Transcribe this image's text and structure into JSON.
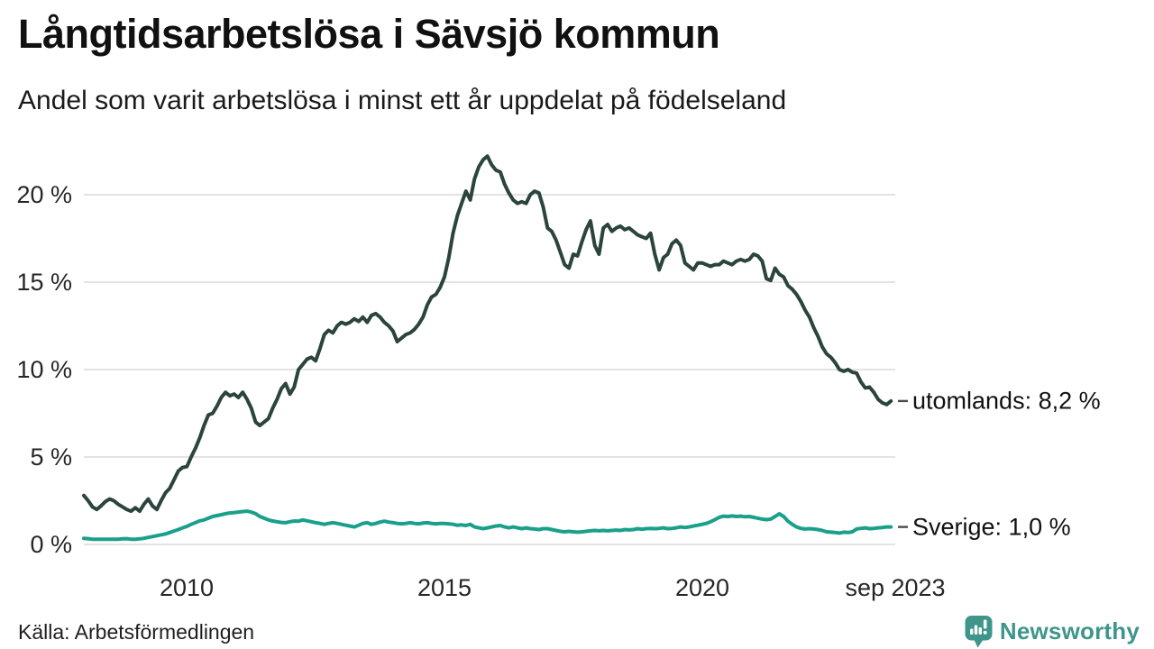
{
  "chart_data": {
    "type": "line",
    "title": "Långtidsarbetslösa i Sävsjö kommun",
    "subtitle": "Andel som varit arbetslösa i minst ett år uppdelat på födelseland",
    "source": "Källa: Arbetsförmedlingen",
    "grid": "horizontal-only",
    "legend_position": "right-end-of-line",
    "x_axis": {
      "range": [
        2008.0,
        2023.75
      ],
      "ticks": [
        {
          "t": 2010,
          "label": "2010"
        },
        {
          "t": 2015,
          "label": "2015"
        },
        {
          "t": 2020,
          "label": "2020"
        },
        {
          "t": 2023.75,
          "label": "sep 2023"
        }
      ]
    },
    "y_axis": {
      "unit": "%",
      "range": [
        0,
        22.5
      ],
      "ticks": [
        {
          "v": 0,
          "label": "0 %"
        },
        {
          "v": 5,
          "label": "5 %"
        },
        {
          "v": 10,
          "label": "10 %"
        },
        {
          "v": 15,
          "label": "15 %"
        },
        {
          "v": 20,
          "label": "20 %"
        }
      ]
    },
    "series": [
      {
        "name": "utomlands",
        "label": "utomlands: 8,2 %",
        "end_value": 8.2,
        "color": "#2b443d",
        "start": 2008.0,
        "per_year": 12,
        "values": [
          2.8,
          2.5,
          2.15,
          2.0,
          2.2,
          2.45,
          2.6,
          2.5,
          2.3,
          2.15,
          2.0,
          1.9,
          2.1,
          1.9,
          2.3,
          2.6,
          2.2,
          2.0,
          2.5,
          2.95,
          3.2,
          3.7,
          4.2,
          4.4,
          4.45,
          5.0,
          5.5,
          6.1,
          6.8,
          7.4,
          7.5,
          7.9,
          8.4,
          8.7,
          8.5,
          8.6,
          8.4,
          8.7,
          8.3,
          7.8,
          7.0,
          6.8,
          7.0,
          7.2,
          7.8,
          8.3,
          8.9,
          9.2,
          8.6,
          9.0,
          10.0,
          10.3,
          10.6,
          10.7,
          10.5,
          11.2,
          12.0,
          12.25,
          12.1,
          12.5,
          12.7,
          12.6,
          12.7,
          12.9,
          12.75,
          13.0,
          12.7,
          13.1,
          13.2,
          13.0,
          12.7,
          12.5,
          12.2,
          11.6,
          11.8,
          12.0,
          12.1,
          12.3,
          12.6,
          13.0,
          13.7,
          14.15,
          14.3,
          14.7,
          15.3,
          16.4,
          17.8,
          18.8,
          19.5,
          20.2,
          19.7,
          20.9,
          21.6,
          22.0,
          22.2,
          21.7,
          21.4,
          21.3,
          20.6,
          20.1,
          19.7,
          19.5,
          19.6,
          19.5,
          20.0,
          20.2,
          20.1,
          19.3,
          18.1,
          17.9,
          17.4,
          16.7,
          16.0,
          15.8,
          16.6,
          16.5,
          17.3,
          18.0,
          18.5,
          17.1,
          16.6,
          18.1,
          18.3,
          17.9,
          18.1,
          18.2,
          18.0,
          18.1,
          17.9,
          17.7,
          17.6,
          17.5,
          17.8,
          16.6,
          15.7,
          16.4,
          16.6,
          17.2,
          17.4,
          17.1,
          16.1,
          15.9,
          15.7,
          16.1,
          16.1,
          16.0,
          15.9,
          16.0,
          16.0,
          16.2,
          16.1,
          16.0,
          16.2,
          16.3,
          16.2,
          16.3,
          16.6,
          16.5,
          16.2,
          15.2,
          15.1,
          15.8,
          15.45,
          15.3,
          14.8,
          14.6,
          14.3,
          13.9,
          13.4,
          13.0,
          12.4,
          11.9,
          11.3,
          10.9,
          10.7,
          10.4,
          10.0,
          9.9,
          10.0,
          9.85,
          9.8,
          9.3,
          8.95,
          9.0,
          8.7,
          8.3,
          8.1,
          8.0,
          8.2
        ]
      },
      {
        "name": "sverige",
        "label": "Sverige: 1,0 %",
        "end_value": 1.0,
        "color": "#1aa08a",
        "start": 2008.0,
        "per_year": 12,
        "values": [
          0.35,
          0.33,
          0.3,
          0.3,
          0.3,
          0.3,
          0.3,
          0.3,
          0.3,
          0.32,
          0.33,
          0.3,
          0.3,
          0.32,
          0.35,
          0.4,
          0.45,
          0.5,
          0.55,
          0.6,
          0.68,
          0.77,
          0.85,
          0.95,
          1.03,
          1.15,
          1.25,
          1.35,
          1.4,
          1.5,
          1.6,
          1.65,
          1.7,
          1.76,
          1.8,
          1.82,
          1.85,
          1.88,
          1.9,
          1.85,
          1.76,
          1.6,
          1.5,
          1.4,
          1.34,
          1.3,
          1.26,
          1.24,
          1.3,
          1.34,
          1.33,
          1.4,
          1.35,
          1.3,
          1.24,
          1.2,
          1.15,
          1.2,
          1.24,
          1.2,
          1.15,
          1.1,
          1.05,
          1.0,
          1.1,
          1.2,
          1.24,
          1.15,
          1.2,
          1.28,
          1.33,
          1.28,
          1.24,
          1.2,
          1.18,
          1.2,
          1.24,
          1.2,
          1.18,
          1.22,
          1.24,
          1.2,
          1.18,
          1.2,
          1.2,
          1.18,
          1.15,
          1.1,
          1.12,
          1.08,
          1.15,
          1.0,
          0.95,
          0.9,
          0.95,
          1.0,
          1.05,
          1.08,
          1.0,
          0.95,
          1.0,
          0.95,
          0.9,
          0.95,
          0.9,
          0.88,
          0.85,
          0.9,
          0.9,
          0.85,
          0.8,
          0.75,
          0.72,
          0.75,
          0.72,
          0.7,
          0.72,
          0.75,
          0.78,
          0.8,
          0.78,
          0.8,
          0.78,
          0.8,
          0.82,
          0.8,
          0.85,
          0.83,
          0.85,
          0.9,
          0.87,
          0.9,
          0.92,
          0.9,
          0.92,
          0.95,
          0.9,
          0.92,
          0.95,
          1.0,
          0.97,
          1.0,
          1.05,
          1.1,
          1.15,
          1.2,
          1.3,
          1.42,
          1.55,
          1.62,
          1.6,
          1.63,
          1.6,
          1.62,
          1.58,
          1.6,
          1.55,
          1.5,
          1.45,
          1.42,
          1.45,
          1.6,
          1.75,
          1.6,
          1.33,
          1.15,
          1.0,
          0.92,
          0.88,
          0.9,
          0.88,
          0.85,
          0.8,
          0.72,
          0.7,
          0.68,
          0.65,
          0.7,
          0.68,
          0.72,
          0.88,
          0.92,
          0.95,
          0.9,
          0.92,
          0.95,
          0.97,
          1.0,
          1.0
        ]
      }
    ],
    "colors": {
      "gridline": "#e3e3e3",
      "label_tick": "#4a4a4a",
      "text": "#1a1a1a"
    }
  },
  "branding": {
    "wordmark": "Newsworthy",
    "logo_icon": "newsworthy-speech-bubble-bar-chart",
    "color": "#3e968b"
  }
}
